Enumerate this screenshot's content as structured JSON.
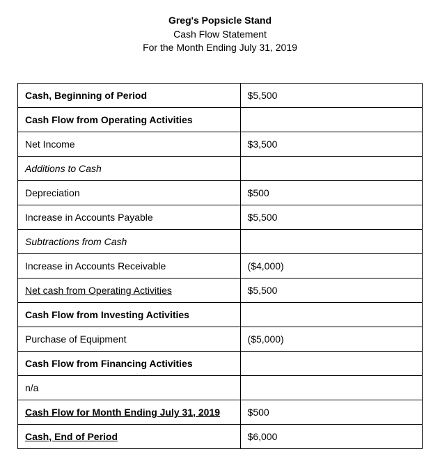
{
  "header": {
    "title": "Greg's Popsicle Stand",
    "subtitle": "Cash Flow Statement",
    "period": "For the Month Ending July 31, 2019"
  },
  "table": {
    "rows": [
      {
        "label": "Cash, Beginning of Period",
        "value": "$5,500",
        "labelBold": true,
        "labelItalic": false,
        "labelUnderline": false
      },
      {
        "label": "Cash Flow from Operating Activities",
        "value": "",
        "labelBold": true,
        "labelItalic": false,
        "labelUnderline": false
      },
      {
        "label": "Net Income",
        "value": "$3,500",
        "labelBold": false,
        "labelItalic": false,
        "labelUnderline": false
      },
      {
        "label": "Additions to Cash",
        "value": "",
        "labelBold": false,
        "labelItalic": true,
        "labelUnderline": false
      },
      {
        "label": "Depreciation",
        "value": "$500",
        "labelBold": false,
        "labelItalic": false,
        "labelUnderline": false
      },
      {
        "label": "Increase in Accounts Payable",
        "value": "$5,500",
        "labelBold": false,
        "labelItalic": false,
        "labelUnderline": false
      },
      {
        "label": "Subtractions from Cash",
        "value": "",
        "labelBold": false,
        "labelItalic": true,
        "labelUnderline": false
      },
      {
        "label": "Increase in Accounts Receivable",
        "value": "($4,000)",
        "labelBold": false,
        "labelItalic": false,
        "labelUnderline": false
      },
      {
        "label": "Net cash from Operating Activities",
        "value": "$5,500",
        "labelBold": false,
        "labelItalic": false,
        "labelUnderline": true
      },
      {
        "label": "Cash Flow from Investing Activities",
        "value": "",
        "labelBold": true,
        "labelItalic": false,
        "labelUnderline": false
      },
      {
        "label": "Purchase of Equipment",
        "value": "($5,000)",
        "labelBold": false,
        "labelItalic": false,
        "labelUnderline": false
      },
      {
        "label": "Cash Flow from Financing Activities",
        "value": "",
        "labelBold": true,
        "labelItalic": false,
        "labelUnderline": false
      },
      {
        "label": "n/a",
        "value": "",
        "labelBold": false,
        "labelItalic": false,
        "labelUnderline": false
      },
      {
        "label": "Cash Flow for Month Ending July 31, 2019",
        "value": "$500",
        "labelBold": true,
        "labelItalic": false,
        "labelUnderline": true
      },
      {
        "label": "Cash, End of Period",
        "value": "$6,000",
        "labelBold": true,
        "labelItalic": false,
        "labelUnderline": true
      }
    ]
  },
  "styles": {
    "background_color": "#ffffff",
    "text_color": "#000000",
    "border_color": "#000000",
    "font_family": "Arial, Helvetica, sans-serif",
    "base_font_size": 14,
    "label_col_width_pct": 55,
    "value_col_width_pct": 45
  }
}
